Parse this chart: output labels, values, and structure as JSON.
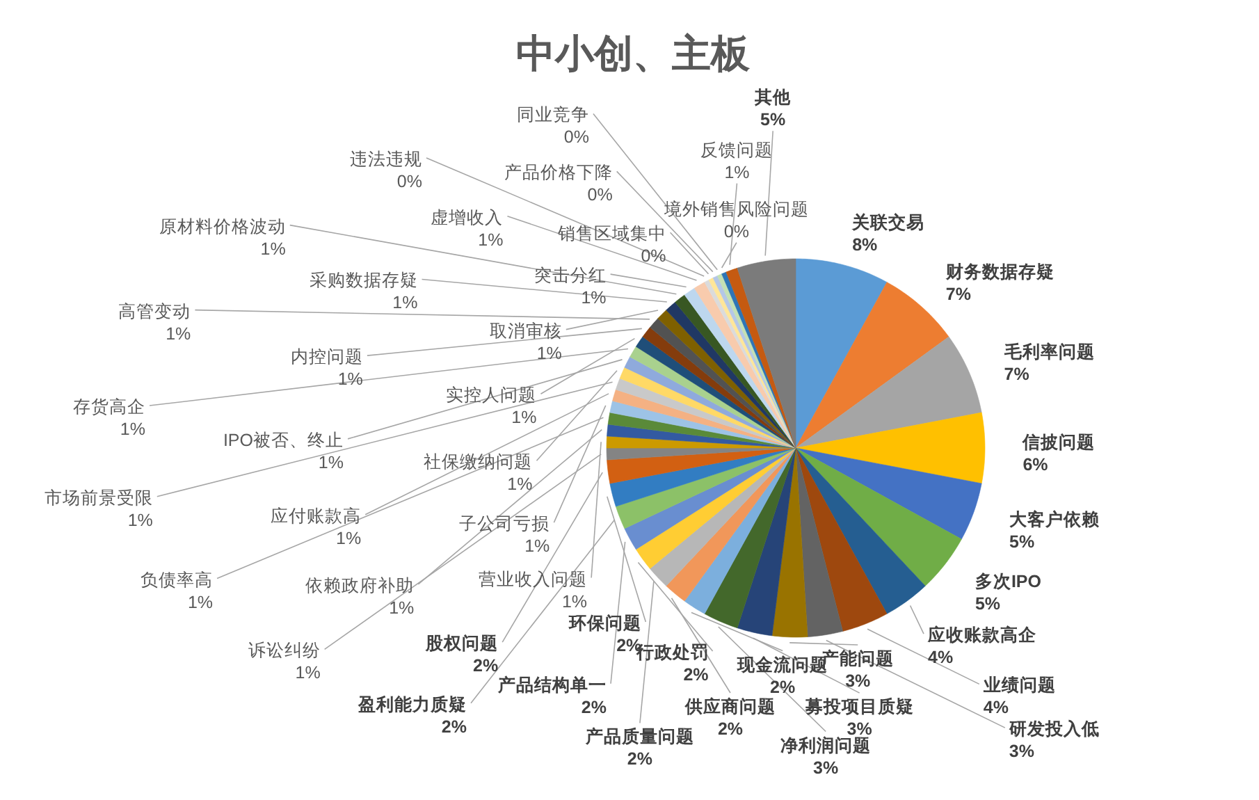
{
  "chart_data": {
    "type": "pie",
    "title": "中小创、主板",
    "categories": [
      "关联交易",
      "财务数据存疑",
      "毛利率问题",
      "信披问题",
      "大客户依赖",
      "多次IPO",
      "应收账款高企",
      "业绩问题",
      "研发投入低",
      "产能问题",
      "募投项目质疑",
      "净利润问题",
      "现金流问题",
      "供应商问题",
      "产品质量问题",
      "行政处罚",
      "产品结构单一",
      "盈利能力质疑",
      "环保问题",
      "股权问题",
      "诉讼纠纷",
      "营业收入问题",
      "依赖政府补助",
      "负债率高",
      "子公司亏损",
      "应付账款高",
      "市场前景受限",
      "社保缴纳问题",
      "IPO被否、终止",
      "存货高企",
      "实控人问题",
      "内控问题",
      "高管变动",
      "取消审核",
      "采购数据存疑",
      "原材料价格波动",
      "突击分红",
      "虚增收入",
      "违法违规",
      "销售区域集中",
      "产品价格下降",
      "同业竞争",
      "境外销售风险问题",
      "反馈问题",
      "其他"
    ],
    "values": [
      8,
      7,
      7,
      6,
      5,
      5,
      4,
      4,
      3,
      3,
      3,
      3,
      2,
      2,
      2,
      2,
      2,
      2,
      2,
      2,
      1,
      1,
      1,
      1,
      1,
      1,
      1,
      1,
      1,
      1,
      1,
      1,
      1,
      1,
      1,
      1,
      1,
      1,
      0.4,
      0.4,
      0.4,
      0.4,
      0.4,
      1,
      5
    ],
    "value_labels": [
      "8%",
      "7%",
      "7%",
      "6%",
      "5%",
      "5%",
      "4%",
      "4%",
      "3%",
      "3%",
      "3%",
      "3%",
      "2%",
      "2%",
      "2%",
      "2%",
      "2%",
      "2%",
      "2%",
      "2%",
      "1%",
      "1%",
      "1%",
      "1%",
      "1%",
      "1%",
      "1%",
      "1%",
      "1%",
      "1%",
      "1%",
      "1%",
      "1%",
      "1%",
      "1%",
      "1%",
      "1%",
      "1%",
      "0%",
      "0%",
      "0%",
      "0%",
      "0%",
      "1%",
      "5%"
    ],
    "colors": [
      "#5b9bd5",
      "#ed7d31",
      "#a5a5a5",
      "#ffc000",
      "#4472c4",
      "#70ad47",
      "#255e91",
      "#9e480e",
      "#636363",
      "#997300",
      "#264478",
      "#43682b",
      "#7cafdd",
      "#f1975a",
      "#b7b7b7",
      "#ffcd33",
      "#698ed0",
      "#8cc168",
      "#327dc2",
      "#d26012",
      "#848484",
      "#cc9a00",
      "#335aa1",
      "#5a8a39",
      "#9dc3e6",
      "#f4b183",
      "#c9c9c9",
      "#ffd966",
      "#8faadc",
      "#a9d18e",
      "#1f4e79",
      "#843c0c",
      "#525252",
      "#7f6000",
      "#203864",
      "#385723",
      "#bdd7ee",
      "#f8cbad",
      "#dbdbdb",
      "#ffe699",
      "#b4c7e7",
      "#c5e0b4",
      "#2e75b6",
      "#c55a11",
      "#7b7b7b"
    ]
  }
}
